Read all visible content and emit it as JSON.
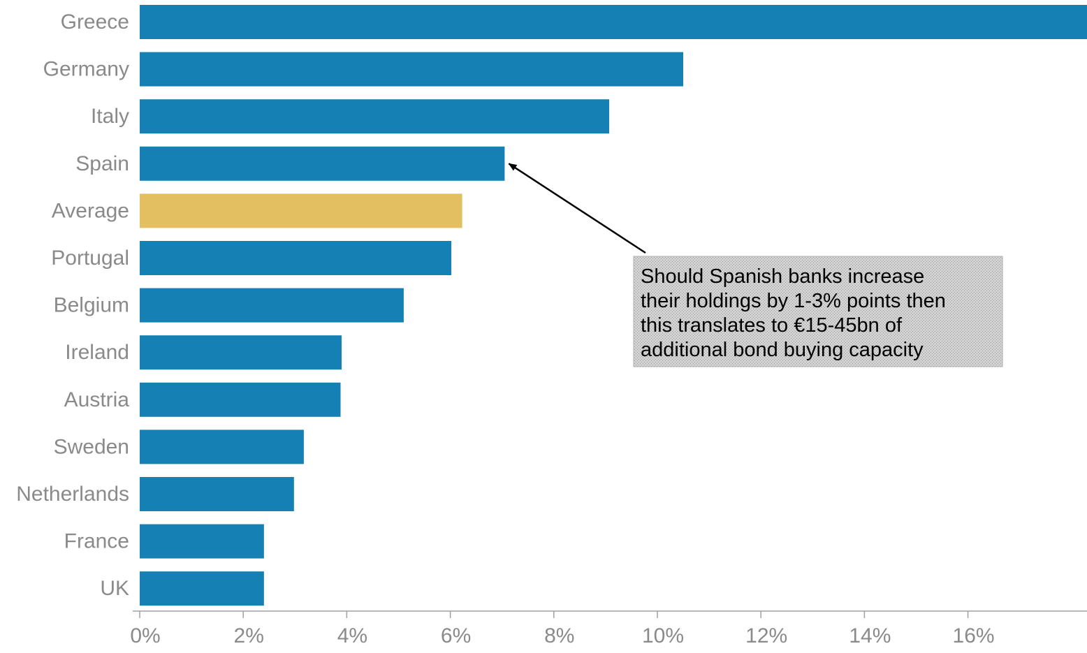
{
  "chart_data": {
    "type": "bar",
    "orientation": "horizontal",
    "categories": [
      "Greece",
      "Germany",
      "Italy",
      "Spain",
      "Average",
      "Portugal",
      "Belgium",
      "Ireland",
      "Austria",
      "Sweden",
      "Netherlands",
      "France",
      "UK"
    ],
    "values": [
      18.3,
      10.5,
      9.07,
      7.05,
      6.23,
      6.02,
      5.1,
      3.9,
      3.88,
      3.17,
      2.98,
      2.4,
      2.4
    ],
    "highlight_category": "Average",
    "xlim": [
      0,
      18.3
    ],
    "xticks": [
      0,
      2,
      4,
      6,
      8,
      10,
      12,
      14,
      16
    ],
    "xtick_labels": [
      "0%",
      "2%",
      "4%",
      "6%",
      "8%",
      "10%",
      "12%",
      "14%",
      "16%"
    ],
    "grid": false,
    "legend": "none",
    "title": "",
    "xlabel": "",
    "ylabel": "",
    "colors": {
      "bar": "#1580b3",
      "highlight": "#e4bf62",
      "axis": "#a0a0a0",
      "label": "#8a8a8a",
      "annotation_bg": "#c9c9c9"
    },
    "annotation": {
      "target_category": "Spain",
      "lines": [
        "Should Spanish banks increase",
        "their holdings by 1-3% points then",
        "this translates to €15-45bn of",
        "additional bond buying capacity"
      ]
    }
  }
}
